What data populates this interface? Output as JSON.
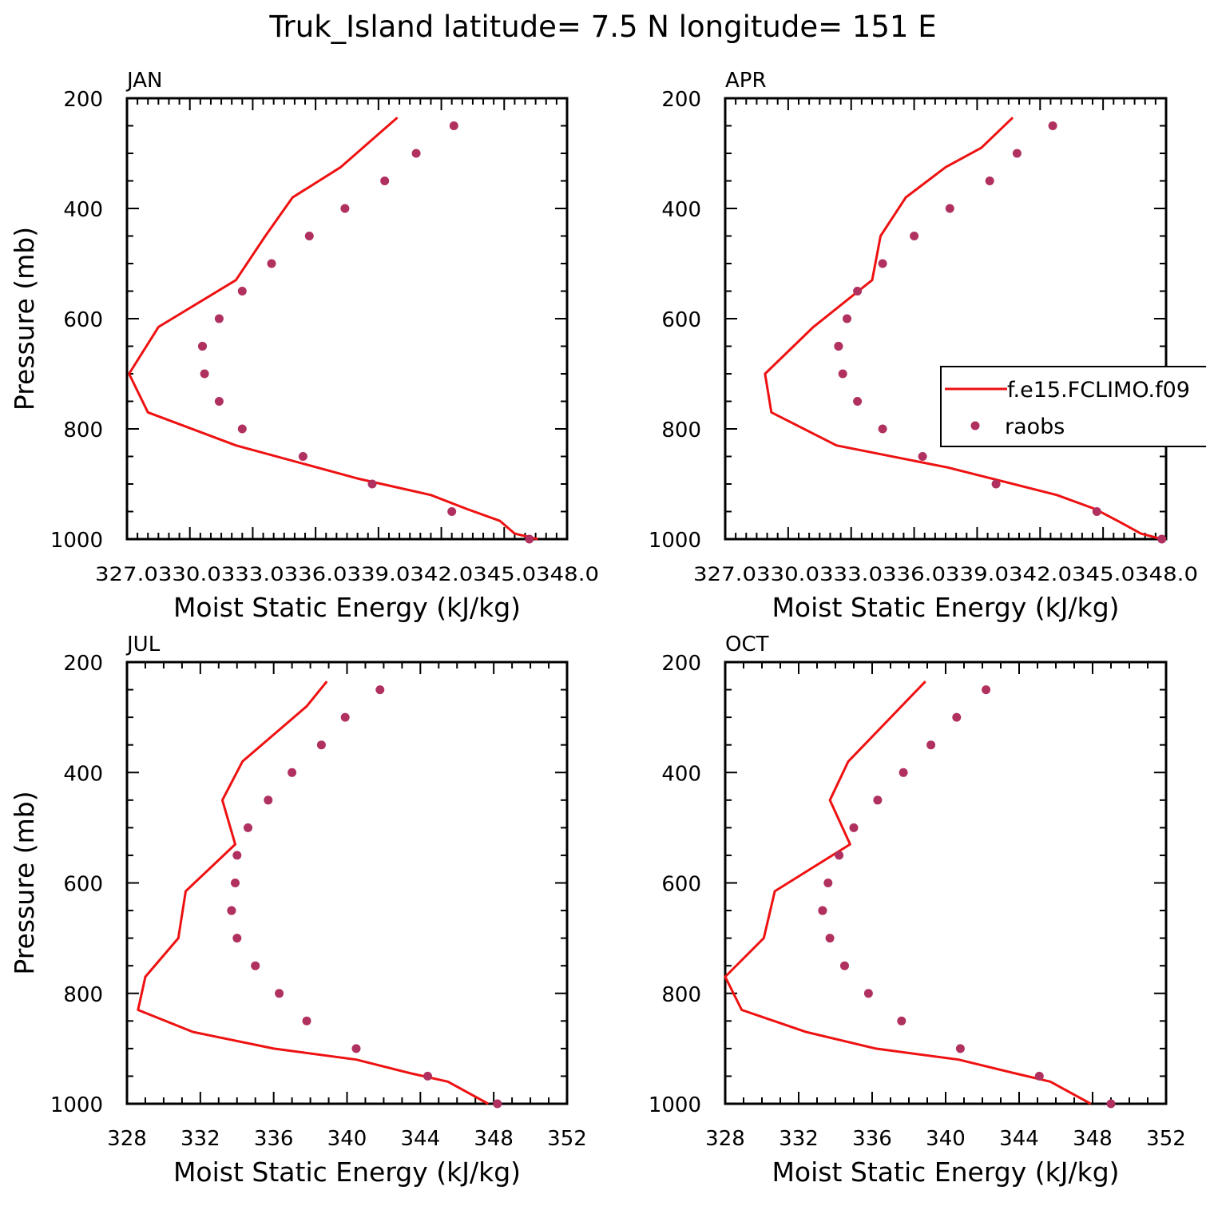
{
  "figure": {
    "title": "Truk_Island  latitude= 7.5 N longitude= 151 E"
  },
  "colors": {
    "model": "#ee1111",
    "obs": "#b03060",
    "axis": "#000000"
  },
  "legend": {
    "model_label": "f.e15.FCLIMO.f09",
    "obs_label": "raobs"
  },
  "chart_data": [
    {
      "type": "line",
      "panel_label": "JAN",
      "xlabel": "Moist Static Energy (kJ/kg)",
      "ylabel": "Pressure (mb)",
      "xlim": [
        327.0,
        348.0
      ],
      "xticks": [
        327,
        330,
        333,
        336,
        339,
        342,
        345,
        348
      ],
      "xtick_labels": [
        "327.0",
        "330.0",
        "333.0",
        "336.0",
        "339.0",
        "342.0",
        "345.0",
        "348.0"
      ],
      "xtick_text": "327.0330.0333.0336.0339.0342.0345.0348.0",
      "ylim": [
        1000,
        200
      ],
      "yticks": [
        200,
        400,
        600,
        800,
        1000
      ],
      "series": [
        {
          "name": "f.e15.FCLIMO.f09",
          "kind": "line",
          "x": [
            346.6,
            345.5,
            344.8,
            343.2,
            341.5,
            338.0,
            332.2,
            328.0,
            327.1,
            328.5,
            332.2,
            333.6,
            334.9,
            337.2,
            339.9
          ],
          "y": [
            1000,
            990,
            967,
            945,
            920,
            890,
            830,
            770,
            700,
            615,
            530,
            450,
            380,
            325,
            235
          ]
        },
        {
          "name": "raobs",
          "kind": "scatter",
          "x": [
            346.2,
            342.5,
            338.7,
            335.4,
            332.5,
            331.4,
            330.7,
            330.6,
            330.6,
            331.4,
            332.5,
            333.9,
            335.7,
            337.4,
            339.3,
            340.8,
            342.6
          ],
          "y": [
            1000,
            950,
            900,
            850,
            800,
            750,
            700,
            650,
            650,
            600,
            550,
            500,
            450,
            400,
            350,
            300,
            250
          ]
        }
      ]
    },
    {
      "type": "line",
      "panel_label": "APR",
      "xlabel": "Moist Static Energy (kJ/kg)",
      "ylabel": "",
      "xlim": [
        327.0,
        348.0
      ],
      "xticks": [
        327,
        330,
        333,
        336,
        339,
        342,
        345,
        348
      ],
      "xtick_labels": [
        "327.0",
        "330.0",
        "333.0",
        "336.0",
        "339.0",
        "342.0",
        "345.0",
        "348.0"
      ],
      "xtick_text": "327.0330.0333.0336.0339.0342.0345.0348.0",
      "ylim": [
        1000,
        200
      ],
      "yticks": [
        200,
        400,
        600,
        800,
        1000
      ],
      "series": [
        {
          "name": "f.e15.FCLIMO.f09",
          "kind": "line",
          "x": [
            347.8,
            346.8,
            345.7,
            344.6,
            342.8,
            337.6,
            332.3,
            329.2,
            328.9,
            331.2,
            334.0,
            334.2,
            334.4,
            335.6,
            337.5,
            339.2,
            340.7
          ],
          "y": [
            1000,
            990,
            967,
            945,
            920,
            870,
            830,
            770,
            700,
            615,
            530,
            490,
            450,
            380,
            325,
            290,
            235
          ]
        },
        {
          "name": "raobs",
          "kind": "scatter",
          "x": [
            347.8,
            344.7,
            339.9,
            336.4,
            334.5,
            333.3,
            332.6,
            332.4,
            332.4,
            332.8,
            333.3,
            334.5,
            336.0,
            337.7,
            339.6,
            340.9,
            342.6
          ],
          "y": [
            1000,
            950,
            900,
            850,
            800,
            750,
            700,
            650,
            650,
            600,
            550,
            500,
            450,
            400,
            350,
            300,
            250
          ]
        }
      ]
    },
    {
      "type": "line",
      "panel_label": "JUL",
      "xlabel": "Moist Static Energy (kJ/kg)",
      "ylabel": "Pressure (mb)",
      "xlim": [
        328,
        352
      ],
      "xticks": [
        328,
        332,
        336,
        340,
        344,
        348,
        352
      ],
      "xtick_labels": [
        "328",
        "332",
        "336",
        "340",
        "344",
        "348",
        "352"
      ],
      "xtick_text": "",
      "ylim": [
        1000,
        200
      ],
      "yticks": [
        200,
        400,
        600,
        800,
        1000
      ],
      "series": [
        {
          "name": "f.e15.FCLIMO.f09",
          "kind": "line",
          "x": [
            347.7,
            345.5,
            343.5,
            340.5,
            336.0,
            331.6,
            328.6,
            329.0,
            330.8,
            331.2,
            333.9,
            333.2,
            334.3,
            337.8,
            338.9
          ],
          "y": [
            1000,
            960,
            945,
            920,
            900,
            870,
            830,
            770,
            700,
            615,
            530,
            450,
            380,
            280,
            235
          ]
        },
        {
          "name": "raobs",
          "kind": "scatter",
          "x": [
            348.2,
            344.4,
            340.5,
            337.8,
            336.3,
            335.0,
            334.0,
            333.7,
            333.7,
            333.9,
            334.0,
            334.6,
            335.7,
            337.0,
            338.6,
            339.9,
            341.8
          ],
          "y": [
            1000,
            950,
            900,
            850,
            800,
            750,
            700,
            650,
            650,
            600,
            550,
            500,
            450,
            400,
            350,
            300,
            250
          ]
        }
      ]
    },
    {
      "type": "line",
      "panel_label": "OCT",
      "xlabel": "Moist Static Energy (kJ/kg)",
      "ylabel": "",
      "xlim": [
        328,
        352
      ],
      "xticks": [
        328,
        332,
        336,
        340,
        344,
        348,
        352
      ],
      "xtick_labels": [
        "328",
        "332",
        "336",
        "340",
        "344",
        "348",
        "352"
      ],
      "xtick_text": "",
      "ylim": [
        1000,
        200
      ],
      "yticks": [
        200,
        400,
        600,
        800,
        1000
      ],
      "series": [
        {
          "name": "f.e15.FCLIMO.f09",
          "kind": "line",
          "x": [
            347.9,
            345.7,
            343.8,
            340.7,
            336.2,
            332.4,
            328.9,
            328.0,
            330.1,
            330.7,
            334.8,
            333.7,
            334.7,
            338.9
          ],
          "y": [
            1000,
            960,
            945,
            920,
            900,
            870,
            830,
            770,
            700,
            615,
            530,
            450,
            380,
            235
          ]
        },
        {
          "name": "raobs",
          "kind": "scatter",
          "x": [
            349.0,
            345.1,
            340.8,
            337.6,
            335.8,
            334.5,
            333.7,
            333.3,
            333.3,
            333.6,
            334.2,
            335.0,
            336.3,
            337.7,
            339.2,
            340.6,
            342.2
          ],
          "y": [
            1000,
            950,
            900,
            850,
            800,
            750,
            700,
            650,
            650,
            600,
            550,
            500,
            450,
            400,
            350,
            300,
            250
          ]
        }
      ]
    }
  ]
}
